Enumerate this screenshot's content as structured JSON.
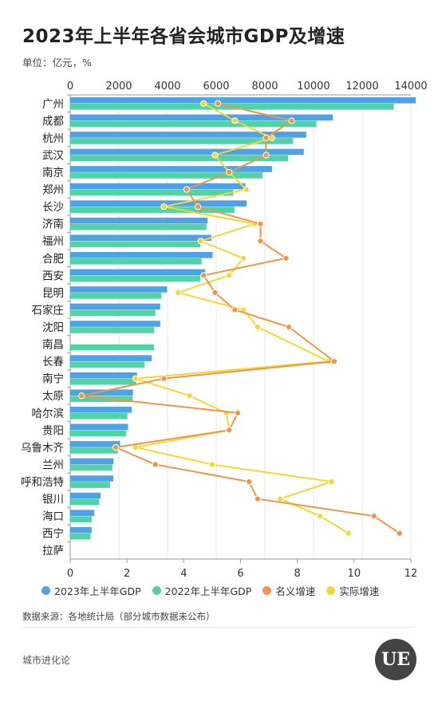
{
  "title": "2023年上半年各省会城市GDP及增速",
  "unit": "单位：亿元，%",
  "source": "数据来源：各地统计局（部分城市数据未公布）",
  "brand": "城市进化论",
  "logo_text": "UE",
  "colors": {
    "gdp2023": "#4ea3e6",
    "gdp2022": "#4fd3a7",
    "nominal": "#ef9547",
    "real": "#f5d634",
    "grid": "#e6e6e6"
  },
  "chart_data": {
    "type": "bar",
    "categories": [
      "广州",
      "成都",
      "杭州",
      "武汉",
      "南京",
      "郑州",
      "长沙",
      "济南",
      "福州",
      "合肥",
      "西安",
      "昆明",
      "石家庄",
      "沈阳",
      "南昌",
      "长春",
      "南宁",
      "太原",
      "哈尔滨",
      "贵阳",
      "乌鲁木齐",
      "兰州",
      "呼和浩特",
      "银川",
      "海口",
      "西宁",
      "拉萨"
    ],
    "top_axis": {
      "min": 0,
      "max": 14000,
      "ticks": [
        0,
        2000,
        4000,
        6000,
        8000,
        10000,
        12000,
        14000
      ]
    },
    "bottom_axis": {
      "min": 0,
      "max": 12,
      "ticks": [
        0,
        2,
        4,
        6,
        8,
        10,
        12
      ]
    },
    "series": [
      {
        "name": "2023年上半年GDP",
        "axis": "top",
        "type": "bar",
        "values": [
          14200,
          10790,
          9700,
          9600,
          8300,
          7200,
          7250,
          5650,
          5800,
          5850,
          5550,
          3980,
          3700,
          3700,
          null,
          3350,
          2750,
          2580,
          2530,
          2380,
          2050,
          1780,
          1770,
          1250,
          990,
          880,
          null
        ]
      },
      {
        "name": "2022年上半年GDP",
        "axis": "top",
        "type": "bar",
        "values": [
          13300,
          10120,
          9160,
          8950,
          7900,
          6700,
          6750,
          5600,
          5350,
          5400,
          5350,
          3750,
          3500,
          3450,
          3440,
          3050,
          2720,
          2570,
          2350,
          2300,
          1960,
          1730,
          1640,
          1190,
          880,
          830,
          null
        ]
      },
      {
        "name": "名义增速",
        "axis": "bottom",
        "type": "line",
        "values": [
          5.2,
          7.8,
          6.9,
          6.9,
          5.6,
          4.1,
          4.5,
          6.7,
          6.7,
          7.6,
          4.7,
          5.1,
          5.8,
          7.7,
          null,
          9.3,
          3.3,
          0.4,
          5.9,
          5.6,
          1.6,
          3.0,
          6.3,
          6.6,
          10.7,
          11.6,
          null
        ]
      },
      {
        "name": "实际增速",
        "axis": "bottom",
        "type": "line",
        "values": [
          4.7,
          5.8,
          7.1,
          5.1,
          5.6,
          6.2,
          3.3,
          6.5,
          4.6,
          6.1,
          5.6,
          3.8,
          6.1,
          6.6,
          null,
          9.1,
          2.3,
          4.2,
          5.5,
          5.6,
          2.3,
          5.0,
          9.2,
          7.4,
          8.8,
          9.8,
          null
        ]
      }
    ],
    "grid": true,
    "legend": "bottom"
  }
}
